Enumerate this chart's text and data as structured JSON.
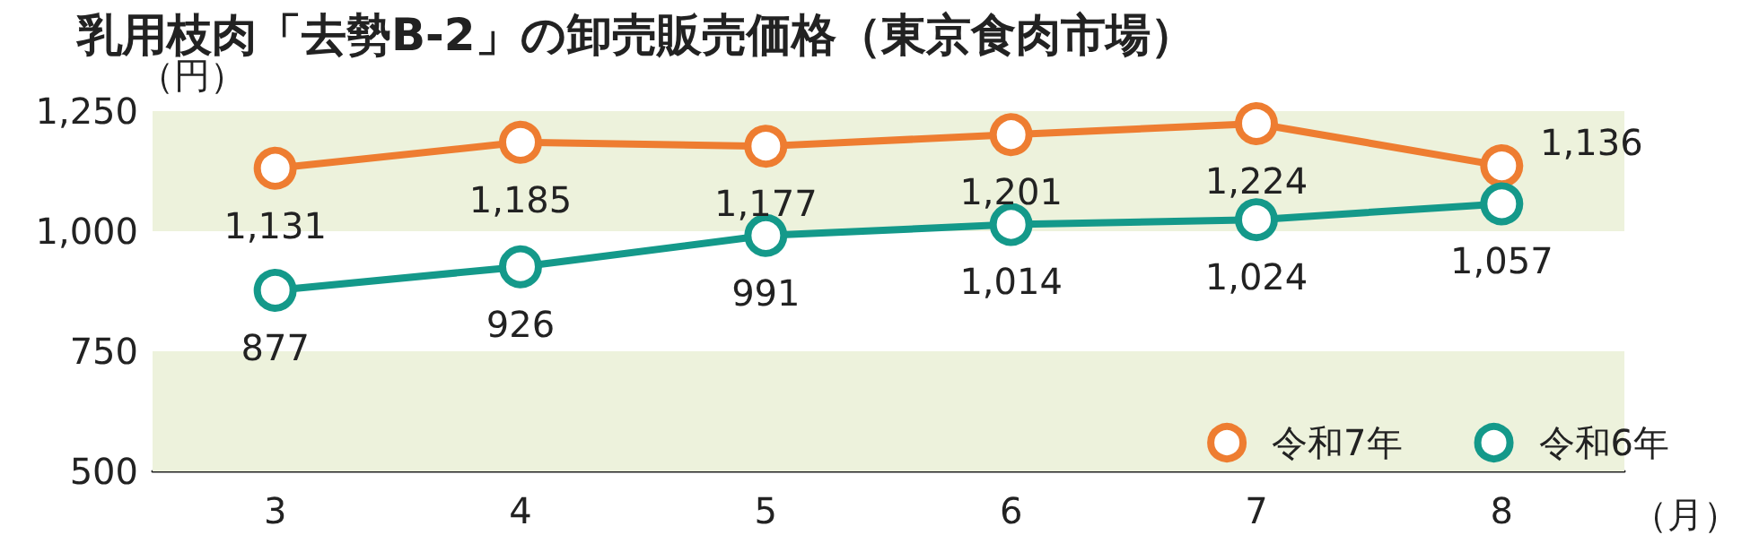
{
  "chart_data": {
    "type": "line",
    "title": "乳用枝肉「去勢B-2」の卸売販売価格（東京食肉市場）",
    "xlabel": "（月）",
    "ylabel": "（円）",
    "categories": [
      "3",
      "4",
      "5",
      "6",
      "7",
      "8"
    ],
    "series": [
      {
        "name": "令和7年",
        "color": "#ee7d31",
        "values": [
          1131,
          1185,
          1177,
          1201,
          1224,
          1136
        ],
        "value_labels": [
          "1,131",
          "1,185",
          "1,177",
          "1,201",
          "1,224",
          "1,136"
        ]
      },
      {
        "name": "令和6年",
        "color": "#14998a",
        "values": [
          877,
          926,
          991,
          1014,
          1024,
          1057
        ],
        "value_labels": [
          "877",
          "926",
          "991",
          "1,014",
          "1,024",
          "1,057"
        ]
      }
    ],
    "ylim": [
      500,
      1250
    ],
    "yticks": [
      {
        "value": 500,
        "label": "500"
      },
      {
        "value": 750,
        "label": "750"
      },
      {
        "value": 1000,
        "label": "1,000"
      },
      {
        "value": 1250,
        "label": "1,250"
      }
    ],
    "bands": [
      {
        "axis": "y",
        "from": 1000,
        "to": 1250,
        "color": "#edf2dc"
      },
      {
        "axis": "y",
        "from": 500,
        "to": 750,
        "color": "#edf2dc"
      }
    ],
    "grid": false,
    "legend": "bottom right",
    "marker": "circle",
    "line_style": "solid"
  }
}
